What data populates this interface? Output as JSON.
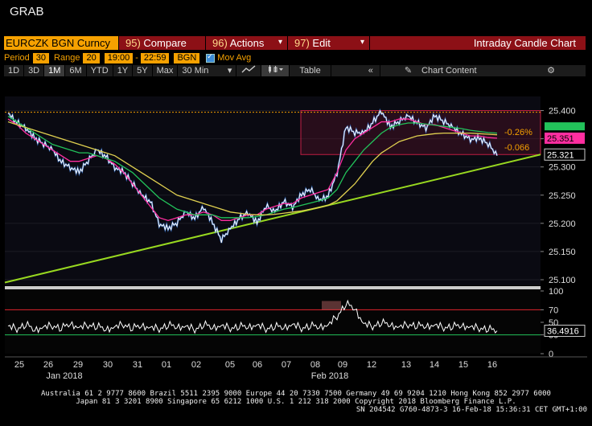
{
  "window": {
    "title": "GRAB"
  },
  "toolbar": {
    "ticker": "EURCZK BGN Curncy",
    "compare": {
      "num": "95)",
      "label": "Compare"
    },
    "actions": {
      "num": "96)",
      "label": "Actions"
    },
    "edit": {
      "num": "97)",
      "label": "Edit"
    },
    "chart_title": "Intraday Candle Chart"
  },
  "params": {
    "period_label": "Period",
    "period_value": "30",
    "range_label": "Range",
    "range_value": "20",
    "time_from": "19:00",
    "time_sep": "-",
    "time_to": "22:59",
    "source": "BGN",
    "mov_avg_label": "Mov Avg",
    "mov_avg_checked": true
  },
  "timebar": {
    "ranges": [
      "1D",
      "3D",
      "1M",
      "6M",
      "YTD",
      "1Y",
      "5Y",
      "Max"
    ],
    "active_range": "1M",
    "interval": "30 Min",
    "table_label": "Table",
    "chart_content_label": "Chart Content"
  },
  "icons": [
    "line-chart-icon",
    "candle-chart-icon",
    "collapse-icon",
    "edit-icon",
    "gear-icon",
    "dropdown-icon"
  ],
  "colors": {
    "accent": "#f6a100",
    "toolbar_red": "#8c1016",
    "price": "#ffffff",
    "ma_fast": "#ff2ea0",
    "ma_mid": "#22c25a",
    "ma_slow": "#e0d050",
    "trend": "#98d820"
  },
  "chart_data": [
    {
      "type": "line",
      "title": "",
      "ylim": [
        25.09,
        25.425
      ],
      "ticks_y": [
        "25.400",
        "25.350",
        "25.300",
        "25.250",
        "25.200",
        "25.150",
        "25.100"
      ],
      "x_ticks": [
        "25",
        "26",
        "29",
        "30",
        "31",
        "01",
        "02",
        "05",
        "06",
        "07",
        "08",
        "09",
        "12",
        "13",
        "14",
        "15",
        "16"
      ],
      "month_labels": [
        "Jan 2018",
        "Feb 2018"
      ],
      "price_last": "25.321",
      "ma_last": "25.351",
      "annotations": [
        "-0.26%",
        "-0.066"
      ],
      "reference_level": 25.397,
      "highlight_zone": [
        25.322,
        25.4
      ],
      "series": [
        {
          "values": [
            25.395,
            25.38,
            25.37,
            25.35,
            25.34,
            25.33,
            25.31,
            25.3,
            25.29,
            25.31,
            25.33,
            25.32,
            25.3,
            25.29,
            25.27,
            25.25,
            25.24,
            25.2,
            25.19,
            25.2,
            25.22,
            25.21,
            25.23,
            25.2,
            25.17,
            25.19,
            25.21,
            25.22,
            25.2,
            25.23,
            25.22,
            25.24,
            25.23,
            25.25,
            25.26,
            25.24,
            25.25,
            25.29,
            25.37,
            25.36,
            25.36,
            25.38,
            25.4,
            25.37,
            25.38,
            25.39,
            25.38,
            25.37,
            25.39,
            25.38,
            25.37,
            25.36,
            25.35,
            25.35,
            25.34,
            25.32
          ]
        },
        {
          "values": [
            25.385,
            25.375,
            25.36,
            25.35,
            25.34,
            25.33,
            25.32,
            25.31,
            25.31,
            25.315,
            25.32,
            25.315,
            25.305,
            25.29,
            25.27,
            25.25,
            25.23,
            25.21,
            25.205,
            25.21,
            25.215,
            25.215,
            25.22,
            25.215,
            25.205,
            25.205,
            25.21,
            25.215,
            25.215,
            25.225,
            25.23,
            25.235,
            25.235,
            25.245,
            25.25,
            25.255,
            25.26,
            25.29,
            25.33,
            25.35,
            25.36,
            25.37,
            25.38,
            25.38,
            25.385,
            25.385,
            25.38,
            25.375,
            25.375,
            25.37,
            25.365,
            25.36,
            25.355,
            25.355,
            25.352,
            25.351
          ]
        },
        {
          "values": [
            25.39,
            25.38,
            25.37,
            25.36,
            25.35,
            25.34,
            25.335,
            25.33,
            25.325,
            25.325,
            25.32,
            25.315,
            25.31,
            25.3,
            25.29,
            25.275,
            25.26,
            25.245,
            25.235,
            25.225,
            25.22,
            25.215,
            25.215,
            25.215,
            25.21,
            25.21,
            25.21,
            25.21,
            25.212,
            25.215,
            25.22,
            25.225,
            25.228,
            25.232,
            25.236,
            25.24,
            25.245,
            25.26,
            25.29,
            25.31,
            25.33,
            25.345,
            25.36,
            25.37,
            25.375,
            25.378,
            25.378,
            25.376,
            25.374,
            25.372,
            25.37,
            25.368,
            25.365,
            25.363,
            25.361,
            25.36
          ]
        },
        {
          "values": [
            25.38,
            25.375,
            25.37,
            25.365,
            25.36,
            25.355,
            25.35,
            25.345,
            25.34,
            25.335,
            25.33,
            25.325,
            25.32,
            25.31,
            25.3,
            25.29,
            25.28,
            25.27,
            25.26,
            25.25,
            25.245,
            25.24,
            25.235,
            25.23,
            25.225,
            25.22,
            25.218,
            25.216,
            25.215,
            25.215,
            25.216,
            25.218,
            25.22,
            25.222,
            25.225,
            25.228,
            25.232,
            25.24,
            25.255,
            25.27,
            25.29,
            25.31,
            25.325,
            25.335,
            25.345,
            25.35,
            25.355,
            25.357,
            25.359,
            25.36,
            25.36,
            25.36,
            25.36,
            25.359,
            25.358,
            25.357
          ]
        }
      ],
      "trendline": [
        25.095,
        25.322
      ]
    },
    {
      "type": "line",
      "ylim": [
        0,
        100
      ],
      "ticks_y": [
        "100",
        "70",
        "50",
        "30",
        "0"
      ],
      "levels": [
        70,
        30
      ],
      "last_label": "36.4916",
      "series": [
        {
          "values": [
            44,
            40,
            47,
            38,
            43,
            45,
            41,
            48,
            42,
            46,
            44,
            39,
            43,
            47,
            41,
            45,
            42,
            40,
            46,
            43,
            44,
            39,
            47,
            42,
            45,
            41,
            44,
            43,
            46,
            40,
            44,
            42,
            47,
            41,
            45,
            43,
            46,
            60,
            80,
            72,
            48,
            44,
            50,
            46,
            43,
            47,
            45,
            44,
            46,
            42,
            44,
            45,
            43,
            41,
            40,
            36.49
          ]
        }
      ]
    }
  ],
  "footer": {
    "line1": "Australia 61 2 9777 8600 Brazil 5511 2395 9000 Europe 44 20 7330 7500 Germany 49 69 9204 1210 Hong Kong 852 2977 6000",
    "line2": "Japan 81 3 3201 8900         Singapore 65 6212 1000         U.S. 1 212 318 2000         Copyright 2018 Bloomberg Finance L.P.",
    "line3": "SN 204542 G760-4873-3 16-Feb-18 15:36:31 CET  GMT+1:00"
  }
}
